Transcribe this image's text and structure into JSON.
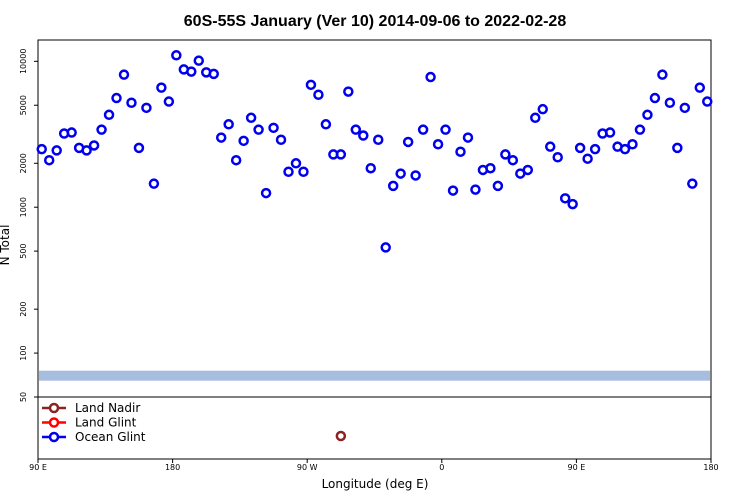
{
  "chart_data": {
    "type": "scatter",
    "title": "60S-55S January (Ver 10)   2014-09-06 to 2022-02-28",
    "xlabel": "Longitude (deg E)",
    "ylabel": "N Total",
    "yscale": "log",
    "xlim": [
      90,
      540
    ],
    "ylim": [
      50,
      14000
    ],
    "xticks": [
      {
        "value": 90,
        "label": "90 E"
      },
      {
        "value": 180,
        "label": "180"
      },
      {
        "value": 270,
        "label": "90 W"
      },
      {
        "value": 360,
        "label": "0"
      },
      {
        "value": 450,
        "label": "90 E"
      },
      {
        "value": 540,
        "label": "180"
      }
    ],
    "yticks": [
      {
        "value": 50,
        "label": "50"
      },
      {
        "value": 100,
        "label": "100"
      },
      {
        "value": 200,
        "label": "200"
      },
      {
        "value": 500,
        "label": "500"
      },
      {
        "value": 1000,
        "label": "1000"
      },
      {
        "value": 2000,
        "label": "2000"
      },
      {
        "value": 5000,
        "label": "5000"
      },
      {
        "value": 10000,
        "label": "10000"
      }
    ],
    "legend": {
      "placement": "bottom-left",
      "entries": [
        {
          "name": "Land Nadir",
          "color": "#8b2323"
        },
        {
          "name": "Land Glint",
          "color": "#ff0000"
        },
        {
          "name": "Ocean Glint",
          "color": "#0000ee"
        }
      ]
    },
    "band": {
      "color": "#a7bddf",
      "y_center": 70
    },
    "series": [
      {
        "name": "Ocean Glint",
        "color": "#0000ee",
        "points": [
          [
            92.5,
            2500
          ],
          [
            97.5,
            2100
          ],
          [
            102.5,
            2450
          ],
          [
            107.5,
            3200
          ],
          [
            112.5,
            3250
          ],
          [
            117.5,
            2550
          ],
          [
            122.5,
            2450
          ],
          [
            127.5,
            2650
          ],
          [
            132.5,
            3400
          ],
          [
            137.5,
            4300
          ],
          [
            142.5,
            5600
          ],
          [
            147.5,
            8100
          ],
          [
            152.5,
            5200
          ],
          [
            157.5,
            2550
          ],
          [
            162.5,
            4800
          ],
          [
            167.5,
            1450
          ],
          [
            172.5,
            6600
          ],
          [
            177.5,
            5300
          ],
          [
            182.5,
            11000
          ],
          [
            187.5,
            8800
          ],
          [
            192.5,
            8500
          ],
          [
            197.5,
            10100
          ],
          [
            202.5,
            8400
          ],
          [
            207.5,
            8200
          ],
          [
            212.5,
            3000
          ],
          [
            217.5,
            3700
          ],
          [
            222.5,
            2100
          ],
          [
            227.5,
            2850
          ],
          [
            232.5,
            4100
          ],
          [
            237.5,
            3400
          ],
          [
            242.5,
            1250
          ],
          [
            247.5,
            3500
          ],
          [
            252.5,
            2900
          ],
          [
            257.5,
            1750
          ],
          [
            262.5,
            2000
          ],
          [
            267.5,
            1750
          ],
          [
            272.5,
            6900
          ],
          [
            277.5,
            5900
          ],
          [
            282.5,
            3700
          ],
          [
            287.5,
            2300
          ],
          [
            292.5,
            2300
          ],
          [
            297.5,
            6200
          ],
          [
            302.5,
            3400
          ],
          [
            307.5,
            3100
          ],
          [
            312.5,
            1850
          ],
          [
            317.5,
            2900
          ],
          [
            322.5,
            530
          ],
          [
            327.5,
            1400
          ],
          [
            332.5,
            1700
          ],
          [
            337.5,
            2800
          ],
          [
            342.5,
            1650
          ],
          [
            347.5,
            3400
          ],
          [
            352.5,
            7800
          ],
          [
            357.5,
            2700
          ],
          [
            362.5,
            3400
          ],
          [
            367.5,
            1300
          ],
          [
            372.5,
            2400
          ],
          [
            377.5,
            3000
          ],
          [
            382.5,
            1320
          ],
          [
            387.5,
            1800
          ],
          [
            392.5,
            1850
          ],
          [
            397.5,
            1400
          ],
          [
            402.5,
            2300
          ],
          [
            407.5,
            2100
          ],
          [
            412.5,
            1700
          ],
          [
            417.5,
            1800
          ],
          [
            422.5,
            4100
          ],
          [
            427.5,
            4700
          ],
          [
            432.5,
            2600
          ],
          [
            437.5,
            2200
          ],
          [
            442.5,
            1150
          ],
          [
            447.5,
            1050
          ],
          [
            452.5,
            2550
          ],
          [
            457.5,
            2150
          ],
          [
            462.5,
            2500
          ],
          [
            467.5,
            3200
          ],
          [
            472.5,
            3250
          ],
          [
            477.5,
            2600
          ],
          [
            482.5,
            2500
          ],
          [
            487.5,
            2700
          ],
          [
            492.5,
            3400
          ],
          [
            497.5,
            4300
          ],
          [
            502.5,
            5600
          ],
          [
            507.5,
            8100
          ],
          [
            512.5,
            5200
          ],
          [
            517.5,
            2550
          ],
          [
            522.5,
            4800
          ],
          [
            527.5,
            1450
          ],
          [
            532.5,
            6600
          ],
          [
            537.5,
            5300
          ]
        ]
      },
      {
        "name": "Land Nadir",
        "color": "#8b2323",
        "placement": "legend-panel",
        "points": [
          [
            292.5,
            null
          ]
        ]
      }
    ]
  }
}
